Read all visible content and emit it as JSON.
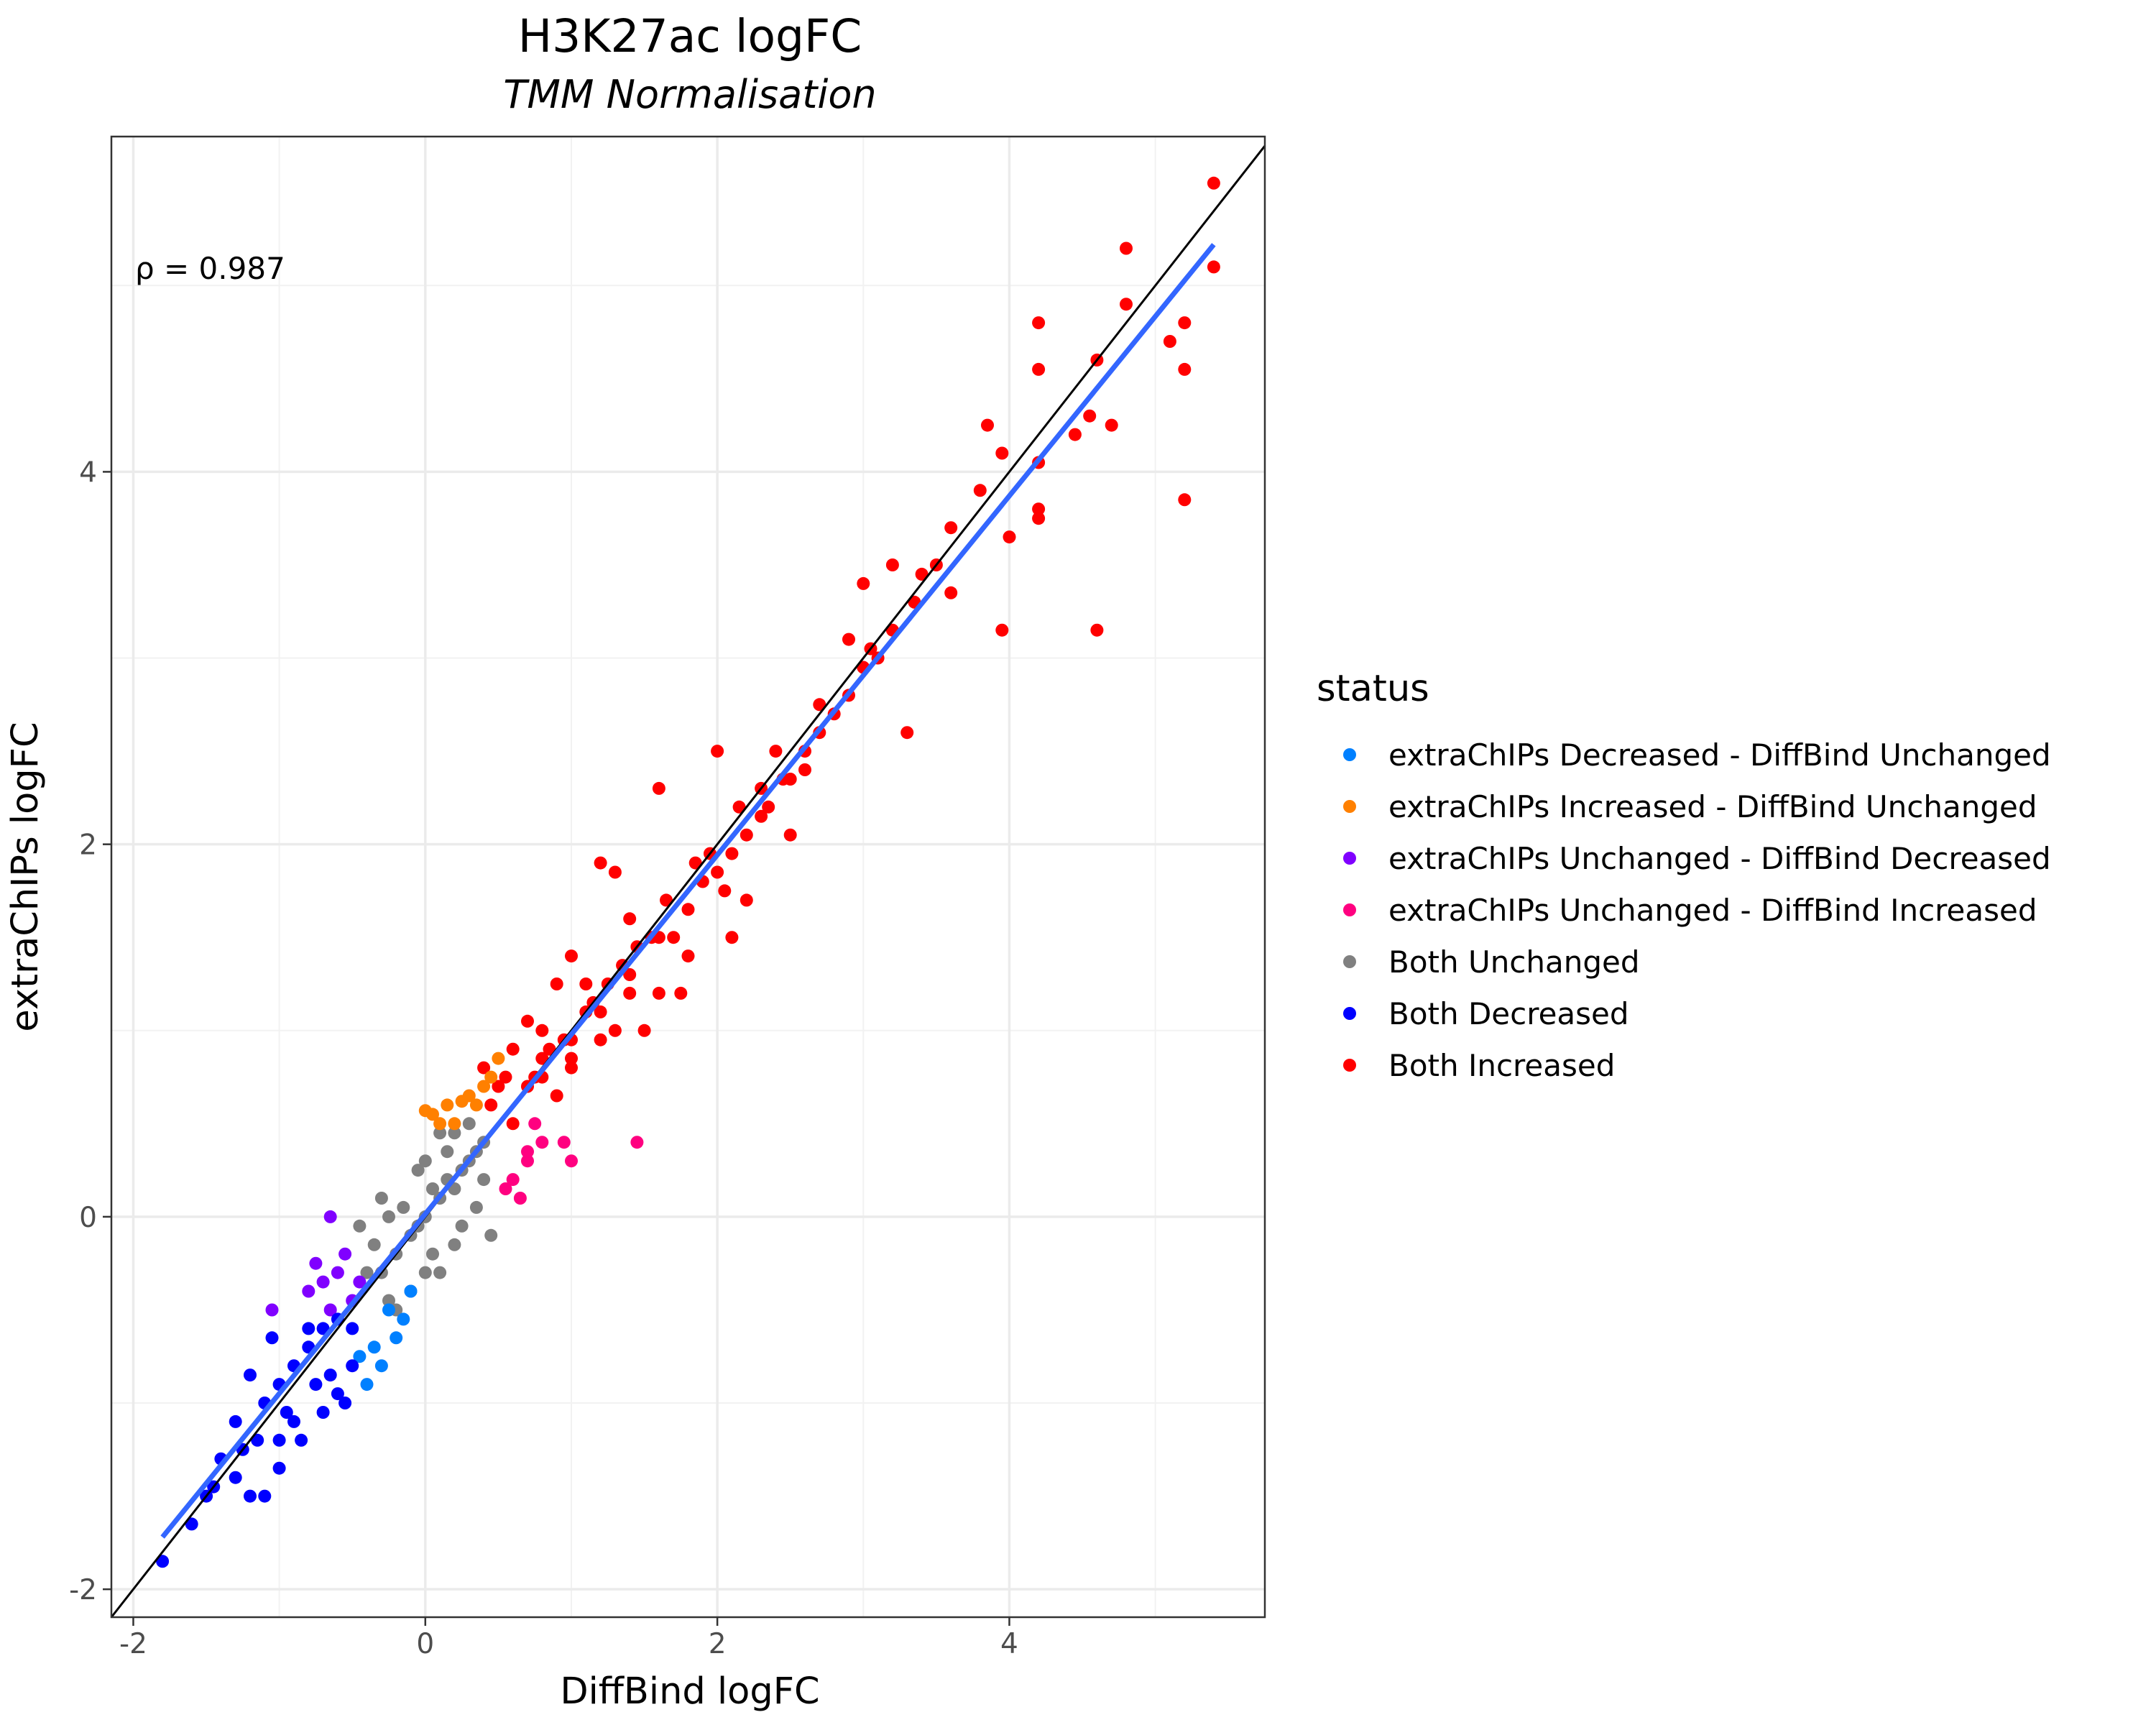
{
  "chart_data": {
    "type": "scatter",
    "title": "H3K27ac logFC",
    "subtitle": "TMM Normalisation",
    "xlabel": "DiffBind logFC",
    "ylabel": "extraChIPs logFC",
    "xlim": [
      -2.15,
      5.75
    ],
    "ylim": [
      -2.15,
      5.8
    ],
    "x_ticks": [
      -2,
      0,
      2,
      4
    ],
    "y_ticks": [
      -2,
      0,
      2,
      4
    ],
    "x_tick_labels": [
      "-2",
      "0",
      "2",
      "4"
    ],
    "y_tick_labels": [
      "-2",
      "0",
      "2",
      "4"
    ],
    "grid": true,
    "legend_position": "right",
    "annotation": "ρ = 0.987",
    "legend": {
      "title": "status",
      "entries": [
        {
          "label": "extraChIPs Decreased - DiffBind Unchanged",
          "color": "#0080ff"
        },
        {
          "label": "extraChIPs Increased - DiffBind Unchanged",
          "color": "#ff8000"
        },
        {
          "label": "extraChIPs Unchanged - DiffBind Decreased",
          "color": "#8000ff"
        },
        {
          "label": "extraChIPs Unchanged - DiffBind Increased",
          "color": "#ff0080"
        },
        {
          "label": "Both Unchanged",
          "color": "#808080"
        },
        {
          "label": "Both Decreased",
          "color": "#0000ff"
        },
        {
          "label": "Both Increased",
          "color": "#ff0000"
        }
      ]
    },
    "reference_line": {
      "slope": 1,
      "intercept": 0,
      "color": "#000000"
    },
    "fit_line": {
      "x": [
        -1.8,
        5.4
      ],
      "y": [
        -1.72,
        5.22
      ],
      "color": "#3366ff"
    },
    "series": [
      {
        "name": "Both Increased",
        "color": "#ff0000",
        "points": [
          [
            5.4,
            5.55
          ],
          [
            4.8,
            5.2
          ],
          [
            5.4,
            5.1
          ],
          [
            4.8,
            4.9
          ],
          [
            5.2,
            4.8
          ],
          [
            4.2,
            4.8
          ],
          [
            5.1,
            4.7
          ],
          [
            5.2,
            4.55
          ],
          [
            4.6,
            4.6
          ],
          [
            4.2,
            4.55
          ],
          [
            4.55,
            4.3
          ],
          [
            4.7,
            4.25
          ],
          [
            4.45,
            4.2
          ],
          [
            3.85,
            4.25
          ],
          [
            3.95,
            4.1
          ],
          [
            4.2,
            4.05
          ],
          [
            3.8,
            3.9
          ],
          [
            4.2,
            3.8
          ],
          [
            4.2,
            3.75
          ],
          [
            5.2,
            3.85
          ],
          [
            4.0,
            3.65
          ],
          [
            4.6,
            3.15
          ],
          [
            3.95,
            3.15
          ],
          [
            3.5,
            3.5
          ],
          [
            3.2,
            3.5
          ],
          [
            3.6,
            3.35
          ],
          [
            3.0,
            3.4
          ],
          [
            3.1,
            3.0
          ],
          [
            2.9,
            3.1
          ],
          [
            3.2,
            3.15
          ],
          [
            3.3,
            2.6
          ],
          [
            2.7,
            2.6
          ],
          [
            2.6,
            2.4
          ],
          [
            2.5,
            2.35
          ],
          [
            2.3,
            2.3
          ],
          [
            2.5,
            2.05
          ],
          [
            2.0,
            2.5
          ],
          [
            1.6,
            2.3
          ],
          [
            1.2,
            1.9
          ],
          [
            1.3,
            1.85
          ],
          [
            1.4,
            1.6
          ],
          [
            1.7,
            1.5
          ],
          [
            2.1,
            1.5
          ],
          [
            2.2,
            1.7
          ],
          [
            2.05,
            1.75
          ],
          [
            1.8,
            1.4
          ],
          [
            1.6,
            1.2
          ],
          [
            1.75,
            1.2
          ],
          [
            1.0,
            1.4
          ],
          [
            0.9,
            1.25
          ],
          [
            0.8,
            1.0
          ],
          [
            0.7,
            1.05
          ],
          [
            1.1,
            1.1
          ],
          [
            1.3,
            1.0
          ],
          [
            1.5,
            1.0
          ],
          [
            0.8,
            0.85
          ],
          [
            0.6,
            0.9
          ],
          [
            0.55,
            0.75
          ],
          [
            1.0,
            0.8
          ],
          [
            1.2,
            0.95
          ],
          [
            0.4,
            0.8
          ],
          [
            0.5,
            0.7
          ],
          [
            0.45,
            0.6
          ],
          [
            0.6,
            0.5
          ],
          [
            0.7,
            0.7
          ],
          [
            0.9,
            0.65
          ],
          [
            1.4,
            1.2
          ],
          [
            1.1,
            1.25
          ],
          [
            1.0,
            0.85
          ],
          [
            3.05,
            3.05
          ],
          [
            2.8,
            2.7
          ],
          [
            2.7,
            2.75
          ],
          [
            2.4,
            2.5
          ],
          [
            2.35,
            2.2
          ],
          [
            2.15,
            2.2
          ],
          [
            1.95,
            1.95
          ],
          [
            1.85,
            1.9
          ],
          [
            1.65,
            1.7
          ],
          [
            1.55,
            1.5
          ],
          [
            1.45,
            1.45
          ],
          [
            1.35,
            1.35
          ],
          [
            1.25,
            1.25
          ],
          [
            1.15,
            1.15
          ],
          [
            0.95,
            0.95
          ],
          [
            0.85,
            0.9
          ],
          [
            0.75,
            0.75
          ],
          [
            2.2,
            2.05
          ],
          [
            2.0,
            1.85
          ],
          [
            1.8,
            1.65
          ],
          [
            1.6,
            1.5
          ],
          [
            1.4,
            1.3
          ],
          [
            1.2,
            1.1
          ],
          [
            1.0,
            0.95
          ],
          [
            0.8,
            0.75
          ],
          [
            3.6,
            3.7
          ],
          [
            3.4,
            3.45
          ],
          [
            3.35,
            3.3
          ],
          [
            3.0,
            2.95
          ],
          [
            2.9,
            2.8
          ],
          [
            2.6,
            2.5
          ],
          [
            2.45,
            2.35
          ],
          [
            2.3,
            2.15
          ],
          [
            2.1,
            1.95
          ],
          [
            1.9,
            1.8
          ]
        ]
      },
      {
        "name": "Both Unchanged",
        "color": "#808080",
        "points": [
          [
            0.0,
            0.0
          ],
          [
            0.1,
            0.1
          ],
          [
            -0.1,
            -0.1
          ],
          [
            0.2,
            0.15
          ],
          [
            -0.2,
            -0.2
          ],
          [
            0.3,
            0.3
          ],
          [
            -0.3,
            -0.3
          ],
          [
            0.15,
            0.35
          ],
          [
            -0.15,
            0.05
          ],
          [
            0.05,
            -0.2
          ],
          [
            0.25,
            -0.05
          ],
          [
            0.35,
            0.05
          ],
          [
            -0.25,
            0.0
          ],
          [
            -0.35,
            -0.15
          ],
          [
            0.4,
            0.2
          ],
          [
            0.45,
            -0.1
          ],
          [
            0.2,
            0.45
          ],
          [
            -0.05,
            0.25
          ],
          [
            0.1,
            -0.3
          ],
          [
            -0.1,
            -0.4
          ],
          [
            0.3,
            0.5
          ],
          [
            -0.2,
            -0.5
          ],
          [
            0.0,
            0.3
          ],
          [
            0.0,
            -0.3
          ],
          [
            0.2,
            -0.15
          ],
          [
            -0.3,
            0.1
          ],
          [
            -0.45,
            -0.05
          ],
          [
            0.35,
            0.35
          ],
          [
            -0.25,
            -0.45
          ],
          [
            0.15,
            0.2
          ],
          [
            0.05,
            0.15
          ],
          [
            -0.05,
            -0.05
          ],
          [
            0.4,
            0.4
          ],
          [
            0.25,
            0.25
          ],
          [
            -0.4,
            -0.3
          ],
          [
            0.1,
            0.45
          ]
        ]
      },
      {
        "name": "extraChIPs Increased - DiffBind Unchanged",
        "color": "#ff8000",
        "points": [
          [
            0.0,
            0.57
          ],
          [
            0.05,
            0.55
          ],
          [
            0.15,
            0.6
          ],
          [
            0.25,
            0.62
          ],
          [
            0.35,
            0.6
          ],
          [
            0.2,
            0.5
          ],
          [
            0.4,
            0.7
          ],
          [
            0.45,
            0.75
          ],
          [
            0.3,
            0.65
          ],
          [
            0.1,
            0.5
          ],
          [
            0.5,
            0.85
          ]
        ]
      },
      {
        "name": "extraChIPs Unchanged - DiffBind Increased",
        "color": "#ff0080",
        "points": [
          [
            1.45,
            0.4
          ],
          [
            1.0,
            0.3
          ],
          [
            0.95,
            0.4
          ],
          [
            0.7,
            0.35
          ],
          [
            0.6,
            0.2
          ],
          [
            0.65,
            0.1
          ],
          [
            0.7,
            0.3
          ],
          [
            0.55,
            0.15
          ],
          [
            0.8,
            0.4
          ],
          [
            0.75,
            0.5
          ]
        ]
      },
      {
        "name": "extraChIPs Unchanged - DiffBind Decreased",
        "color": "#8000ff",
        "points": [
          [
            -0.65,
            0.0
          ],
          [
            -0.75,
            -0.25
          ],
          [
            -0.7,
            -0.35
          ],
          [
            -0.6,
            -0.3
          ],
          [
            -0.55,
            -0.2
          ],
          [
            -0.8,
            -0.4
          ],
          [
            -0.5,
            -0.45
          ],
          [
            -1.05,
            -0.5
          ],
          [
            -0.65,
            -0.5
          ],
          [
            -0.45,
            -0.35
          ]
        ]
      },
      {
        "name": "extraChIPs Decreased - DiffBind Unchanged",
        "color": "#0080ff",
        "points": [
          [
            -0.15,
            -0.55
          ],
          [
            -0.2,
            -0.65
          ],
          [
            -0.35,
            -0.7
          ],
          [
            -0.3,
            -0.8
          ],
          [
            -0.4,
            -0.9
          ],
          [
            -0.1,
            -0.4
          ],
          [
            -0.25,
            -0.5
          ],
          [
            -0.45,
            -0.75
          ]
        ]
      },
      {
        "name": "Both Decreased",
        "color": "#0000ff",
        "points": [
          [
            -1.8,
            -1.85
          ],
          [
            -1.6,
            -1.65
          ],
          [
            -1.5,
            -1.5
          ],
          [
            -1.3,
            -1.4
          ],
          [
            -1.2,
            -1.5
          ],
          [
            -1.1,
            -1.5
          ],
          [
            -1.0,
            -1.35
          ],
          [
            -1.4,
            -1.3
          ],
          [
            -1.3,
            -1.1
          ],
          [
            -1.2,
            -0.85
          ],
          [
            -1.1,
            -1.0
          ],
          [
            -1.0,
            -0.9
          ],
          [
            -0.9,
            -0.8
          ],
          [
            -0.8,
            -0.7
          ],
          [
            -0.7,
            -0.6
          ],
          [
            -0.6,
            -0.55
          ],
          [
            -0.9,
            -1.1
          ],
          [
            -0.75,
            -0.9
          ],
          [
            -0.65,
            -0.85
          ],
          [
            -0.5,
            -0.8
          ],
          [
            -0.55,
            -1.0
          ],
          [
            -0.85,
            -1.2
          ],
          [
            -1.05,
            -0.65
          ],
          [
            -0.95,
            -1.05
          ],
          [
            -1.15,
            -1.2
          ],
          [
            -0.7,
            -1.05
          ],
          [
            -0.6,
            -0.95
          ],
          [
            -1.25,
            -1.25
          ],
          [
            -1.45,
            -1.45
          ],
          [
            -0.8,
            -0.6
          ],
          [
            -0.5,
            -0.6
          ],
          [
            -1.0,
            -1.2
          ]
        ]
      }
    ]
  }
}
